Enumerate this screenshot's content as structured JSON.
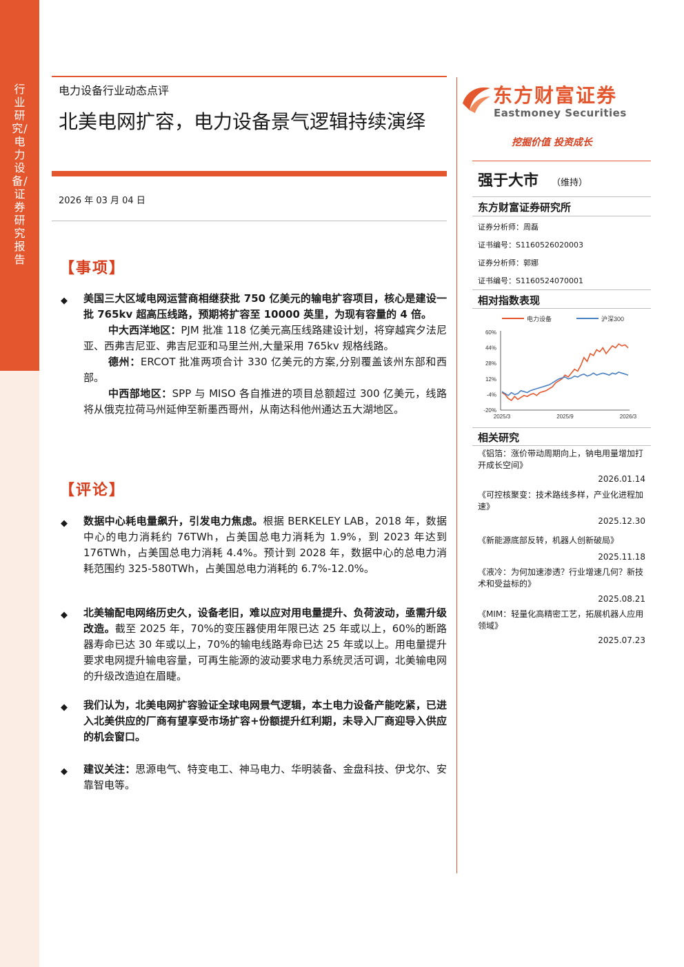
{
  "sidebar": {
    "text": "行业研究/电力设备/证券研究报告"
  },
  "header": {
    "subject": "电力设备行业动态点评",
    "title": "北美电网扩容，电力设备景气逻辑持续演绎",
    "date": "2026 年 03 月 04 日"
  },
  "events": {
    "heading": "【事项】",
    "main_bold": "美国三大区域电网运营商相继获批 750 亿美元的输电扩容项目，核心是建设一批 765kv 超高压线路，预期将扩容至 10000 英里，为现有容量的 4 倍。",
    "items": [
      {
        "label": "中大西洋地区：",
        "text": "PJM 批准 118 亿美元高压线路建设计划，将穿越宾夕法尼亚、西弗吉尼亚、弗吉尼亚和马里兰州,大量采用 765kv 规格线路。"
      },
      {
        "label": "德州：",
        "text": "ERCOT 批准两项合计 330 亿美元的方案,分别覆盖该州东部和西部。"
      },
      {
        "label": "中西部地区：",
        "text": "SPP 与 MISO 各自推进的项目总额超过 300 亿美元，线路将从俄克拉荷马州延伸至新墨西哥州，从南达科他州通达五大湖地区。"
      }
    ]
  },
  "comments": {
    "heading": "【评论】",
    "items": [
      {
        "bold": "数据中心耗电量飙升，引发电力焦虑。",
        "text": "根据 BERKELEY LAB，2018 年，数据中心的电力消耗约 76TWh，占美国总电力消耗为 1.9%，到 2023 年达到 176TWh，占美国总电力消耗 4.4%。预计到 2028 年，数据中心的总电力消耗范围约 325-580TWh，占美国总电力消耗的 6.7%-12.0%。"
      },
      {
        "bold": "北美输配电网络历史久，设备老旧，难以应对用电量提升、负荷波动，亟需升级改造。",
        "text": "截至 2025 年，70%的变压器使用年限已达 25 年或以上，60%的断路器寿命已达 30 年或以上，70%的输电线路寿命已达 25 年或以上。用电量提升要求电网提升输电容量，可再生能源的波动要求电力系统灵活可调，北美输电网的升级改造迫在眉睫。"
      },
      {
        "bold": "我们认为，北美电网扩容验证全球电网景气逻辑，本土电力设备产能吃紧，已进入北美供应的厂商有望享受市场扩容+份额提升红利期，未导入厂商迎导入供应的机会窗口。",
        "text": ""
      },
      {
        "bold": "建议关注：",
        "text": "思源电气、特变电工、神马电力、华明装备、金盘科技、伊戈尔、安靠智电等。"
      }
    ]
  },
  "right": {
    "logo_cn": "东方财富证券",
    "logo_en": "Eastmoney Securities",
    "slogan": "挖掘价值  投资成长",
    "rating": "强于大市",
    "rating_note": "（维持）",
    "institute": "东方财富证券研究所",
    "analysts": [
      {
        "role": "证券分析师：周磊",
        "cert": "证书编号：S1160526020003"
      },
      {
        "role": "证券分析师：郭娜",
        "cert": "证书编号：S1160524070001"
      }
    ],
    "perf_heading": "相对指数表现",
    "related_heading": "相关研究",
    "reports": [
      {
        "title": "《铝箔：涨价带动周期向上，钠电用量增加打开成长空间》",
        "date": "2026.01.14"
      },
      {
        "title": "《可控核聚变：技术路线多样，产业化进程加速》",
        "date": "2025.12.30"
      },
      {
        "title": "《新能源底部反转，机器人创新破局》",
        "date": "2025.11.18"
      },
      {
        "title": "《液冷：为何加速渗透？行业增速几何？新技术和受益标的》",
        "date": "2025.08.21"
      },
      {
        "title": "《MIM：轻量化高精密工艺，拓展机器人应用领域》",
        "date": "2025.07.23"
      }
    ]
  },
  "chart_data": {
    "type": "line",
    "x_ticks": [
      "2025/3",
      "2025/9",
      "2026/3"
    ],
    "y_ticks": [
      "60%",
      "44%",
      "28%",
      "12%",
      "-4%",
      "-20%"
    ],
    "ylim": [
      -20,
      60
    ],
    "series": [
      {
        "name": "电力设备",
        "color": "#e4572e",
        "values": [
          -2,
          -4,
          -8,
          -10,
          -6,
          -9,
          -7,
          -5,
          -6,
          -4,
          -3,
          -5,
          -2,
          -1,
          0,
          2,
          4,
          8,
          10,
          12,
          16,
          14,
          18,
          22,
          20,
          26,
          34,
          30,
          38,
          36,
          42,
          40,
          44,
          38,
          42,
          46,
          44,
          48,
          46,
          47,
          44
        ]
      },
      {
        "name": "沪深300",
        "color": "#4a7fc1",
        "values": [
          -1,
          -3,
          -5,
          -2,
          -4,
          -3,
          0,
          -1,
          -2,
          0,
          1,
          2,
          3,
          4,
          5,
          6,
          8,
          10,
          12,
          13,
          14,
          12,
          13,
          15,
          14,
          16,
          17,
          15,
          16,
          18,
          16,
          17,
          18,
          17,
          16,
          18,
          17,
          19,
          18,
          17,
          16
        ]
      }
    ]
  }
}
